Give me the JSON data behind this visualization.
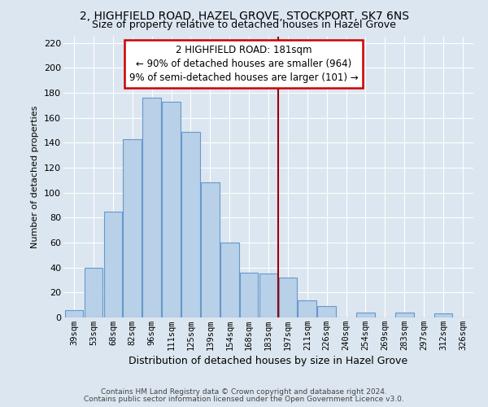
{
  "title": "2, HIGHFIELD ROAD, HAZEL GROVE, STOCKPORT, SK7 6NS",
  "subtitle": "Size of property relative to detached houses in Hazel Grove",
  "xlabel": "Distribution of detached houses by size in Hazel Grove",
  "ylabel": "Number of detached properties",
  "footer_line1": "Contains HM Land Registry data © Crown copyright and database right 2024.",
  "footer_line2": "Contains public sector information licensed under the Open Government Licence v3.0.",
  "bar_labels": [
    "39sqm",
    "53sqm",
    "68sqm",
    "82sqm",
    "96sqm",
    "111sqm",
    "125sqm",
    "139sqm",
    "154sqm",
    "168sqm",
    "183sqm",
    "197sqm",
    "211sqm",
    "226sqm",
    "240sqm",
    "254sqm",
    "269sqm",
    "283sqm",
    "297sqm",
    "312sqm",
    "326sqm"
  ],
  "bar_values": [
    6,
    40,
    85,
    143,
    176,
    173,
    149,
    108,
    60,
    36,
    35,
    32,
    14,
    9,
    0,
    4,
    0,
    4,
    0,
    3,
    0
  ],
  "bar_color": "#b8d0e8",
  "bar_edge_color": "#6699cc",
  "vline_x_index": 10.5,
  "vline_color": "#990000",
  "annotation_title": "2 HIGHFIELD ROAD: 181sqm",
  "annotation_line1": "← 90% of detached houses are smaller (964)",
  "annotation_line2": "9% of semi-detached houses are larger (101) →",
  "annotation_box_facecolor": "#ffffff",
  "annotation_border_color": "#cc0000",
  "ylim": [
    0,
    225
  ],
  "yticks": [
    0,
    20,
    40,
    60,
    80,
    100,
    120,
    140,
    160,
    180,
    200,
    220
  ],
  "bg_color": "#dce6f0",
  "plot_bg_color": "#dce6f0",
  "grid_color": "#ffffff",
  "title_fontsize": 10,
  "subtitle_fontsize": 9,
  "xlabel_fontsize": 9,
  "ylabel_fontsize": 8,
  "tick_fontsize": 7.5,
  "footer_fontsize": 6.5,
  "annotation_fontsize": 8.5
}
